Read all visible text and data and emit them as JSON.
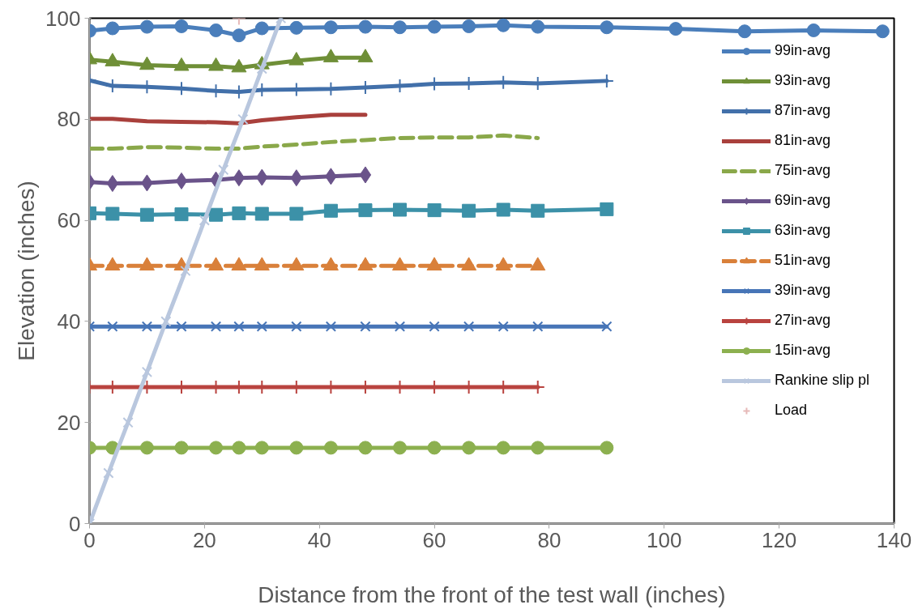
{
  "chart_data": {
    "type": "line",
    "xlabel": "Distance from the front of the test wall (inches)",
    "ylabel": "Elevation (inches)",
    "xlim": [
      0,
      140
    ],
    "xticks": [
      0,
      20,
      40,
      60,
      80,
      100,
      120,
      140
    ],
    "ylim": [
      0,
      100
    ],
    "yticks": [
      0,
      20,
      40,
      60,
      80,
      100
    ],
    "grid": false,
    "legend": "top right",
    "line_style": "solid",
    "series": [
      {
        "name": "99in-avg",
        "color": "#4a7ebb",
        "marker": "circle",
        "x": [
          0,
          4,
          10,
          16,
          22,
          26,
          30,
          36,
          42,
          48,
          54,
          60,
          66,
          72,
          78,
          90,
          102,
          114,
          126,
          138
        ],
        "values": [
          97.5,
          98,
          98.3,
          98.4,
          97.6,
          96.6,
          98,
          98.1,
          98.2,
          98.3,
          98.2,
          98.3,
          98.4,
          98.6,
          98.3,
          98.2,
          97.9,
          97.4,
          97.6,
          97.4
        ]
      },
      {
        "name": "93in-avg",
        "color": "#6f8f37",
        "marker": "triangle",
        "x": [
          0,
          4,
          10,
          16,
          22,
          26,
          30,
          36,
          42,
          48
        ],
        "values": [
          91.8,
          91.4,
          90.7,
          90.5,
          90.5,
          90.2,
          90.8,
          91.6,
          92.2,
          92.2
        ]
      },
      {
        "name": "87in-avg",
        "color": "#4270aa",
        "marker": "cross",
        "x": [
          0,
          4,
          10,
          16,
          22,
          26,
          30,
          36,
          42,
          48,
          54,
          60,
          66,
          72,
          78,
          90
        ],
        "values": [
          87.7,
          86.6,
          86.4,
          86.1,
          85.6,
          85.4,
          85.8,
          85.9,
          86,
          86.3,
          86.6,
          87,
          87.1,
          87.3,
          87.1,
          87.6
        ]
      },
      {
        "name": "81in-avg",
        "color": "#a9403c",
        "marker": "none",
        "x": [
          0,
          4,
          10,
          16,
          22,
          26,
          30,
          36,
          42,
          48
        ],
        "values": [
          80.1,
          80.1,
          79.6,
          79.5,
          79.4,
          79.2,
          79.8,
          80.4,
          80.9,
          80.9
        ]
      },
      {
        "name": "75in-avg",
        "color": "#8aa84a",
        "marker": "none",
        "line_style": "dashed",
        "x": [
          0,
          4,
          10,
          16,
          22,
          26,
          30,
          36,
          42,
          48,
          54,
          60,
          66,
          72,
          78
        ],
        "values": [
          74.2,
          74.2,
          74.5,
          74.4,
          74.2,
          74.2,
          74.6,
          75,
          75.5,
          75.9,
          76.3,
          76.4,
          76.4,
          76.8,
          76.3
        ]
      },
      {
        "name": "69in-avg",
        "color": "#6a538a",
        "marker": "diamond",
        "x": [
          0,
          4,
          10,
          16,
          22,
          26,
          30,
          36,
          42,
          48
        ],
        "values": [
          67.6,
          67.3,
          67.4,
          67.8,
          68,
          68.4,
          68.5,
          68.4,
          68.7,
          69
        ]
      },
      {
        "name": "63in-avg",
        "color": "#3c91a8",
        "marker": "square",
        "x": [
          0,
          4,
          10,
          16,
          22,
          26,
          30,
          36,
          42,
          48,
          54,
          60,
          66,
          72,
          78,
          90
        ],
        "values": [
          61.4,
          61.3,
          61.1,
          61.2,
          61.1,
          61.4,
          61.3,
          61.3,
          61.9,
          62,
          62.1,
          62,
          61.9,
          62.1,
          61.9,
          62.2
        ]
      },
      {
        "name": "51in-avg",
        "color": "#d9803a",
        "marker": "triangle",
        "line_style": "dashed",
        "x": [
          0,
          4,
          10,
          16,
          22,
          26,
          30,
          36,
          42,
          48,
          54,
          60,
          66,
          72,
          78
        ],
        "values": [
          51,
          51,
          51,
          51,
          51,
          51,
          51,
          51,
          51,
          51,
          51,
          51,
          51,
          51,
          51
        ]
      },
      {
        "name": "39in-avg",
        "color": "#4775b7",
        "marker": "x",
        "x": [
          0,
          4,
          10,
          16,
          22,
          26,
          30,
          36,
          42,
          48,
          54,
          60,
          66,
          72,
          78,
          90
        ],
        "values": [
          39,
          39,
          39,
          39,
          39,
          39,
          39,
          39,
          39,
          39,
          39,
          39,
          39,
          39,
          39,
          39
        ]
      },
      {
        "name": "27in-avg",
        "color": "#b9433f",
        "marker": "cross",
        "x": [
          0,
          4,
          10,
          16,
          22,
          26,
          30,
          36,
          42,
          48,
          54,
          60,
          66,
          72,
          78
        ],
        "values": [
          27,
          27,
          27,
          27,
          27,
          27,
          27,
          27,
          27,
          27,
          27,
          27,
          27,
          27,
          27
        ]
      },
      {
        "name": "15in-avg",
        "color": "#8cb04f",
        "marker": "circle",
        "x": [
          0,
          4,
          10,
          16,
          22,
          26,
          30,
          36,
          42,
          48,
          54,
          60,
          66,
          72,
          78,
          90
        ],
        "values": [
          15,
          15,
          15,
          15,
          15,
          15,
          15,
          15,
          15,
          15,
          15,
          15,
          15,
          15,
          15,
          15
        ]
      },
      {
        "name": "Rankine slip pl",
        "color": "#b9c7de",
        "marker": "x",
        "x": [
          0,
          3.3,
          6.7,
          10,
          13.3,
          16.7,
          20,
          23.3,
          26.7,
          30,
          33.3
        ],
        "values": [
          0,
          10,
          20,
          30,
          40,
          50,
          60,
          70,
          80,
          90,
          100
        ]
      },
      {
        "name": "Load",
        "color": "#e6b9b8",
        "marker": "cross",
        "x": [
          26
        ],
        "values": [
          100
        ]
      }
    ]
  }
}
